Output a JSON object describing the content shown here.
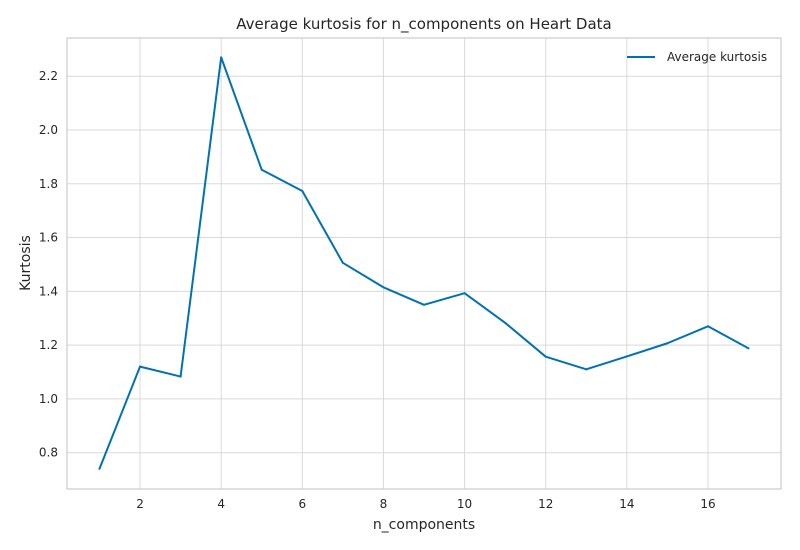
{
  "chart_data": {
    "type": "line",
    "title": "Average kurtosis for n_components on Heart Data",
    "xlabel": "n_components",
    "ylabel": "Kurtosis",
    "x_ticks": [
      2,
      4,
      6,
      8,
      10,
      12,
      14,
      16
    ],
    "y_ticks": [
      0.8,
      1.0,
      1.2,
      1.4,
      1.6,
      1.8,
      2.0,
      2.2
    ],
    "xlim": [
      0.2,
      17.8
    ],
    "ylim": [
      0.665,
      2.342
    ],
    "grid": true,
    "legend_position": "top-right",
    "x": [
      1,
      2,
      3,
      4,
      5,
      6,
      7,
      8,
      9,
      10,
      11,
      12,
      13,
      14,
      15,
      16,
      17
    ],
    "series": [
      {
        "name": "Average kurtosis",
        "color": "#0072b2",
        "values": [
          0.74,
          1.12,
          1.083,
          2.27,
          1.852,
          1.773,
          1.506,
          1.415,
          1.35,
          1.393,
          1.283,
          1.157,
          1.11,
          1.158,
          1.207,
          1.27,
          1.188
        ]
      }
    ]
  }
}
